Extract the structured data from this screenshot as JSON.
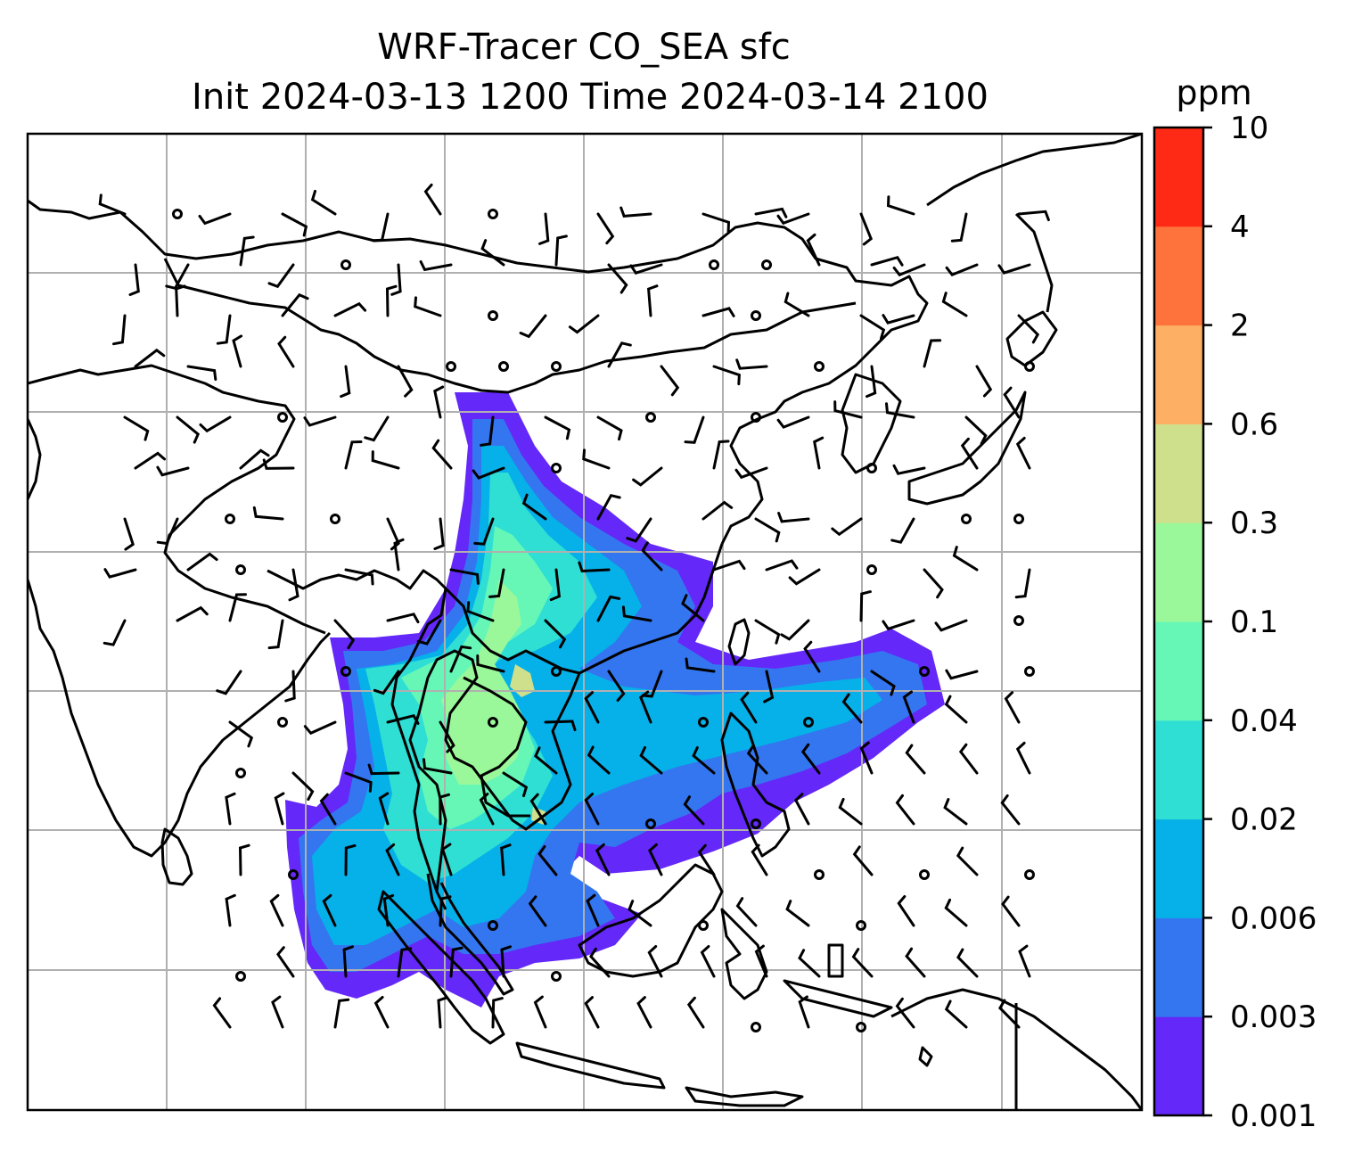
{
  "title": {
    "line1": "WRF-Tracer CO_SEA sfc",
    "line2": "Init 2024-03-13 1200 Time 2024-03-14 2100"
  },
  "colorbar": {
    "unit": "ppm",
    "levels": [
      "0.001",
      "0.003",
      "0.006",
      "0.02",
      "0.04",
      "0.1",
      "0.3",
      "0.6",
      "2",
      "4",
      "10"
    ],
    "colors": [
      "#6428f8",
      "#3476f0",
      "#05b1e8",
      "#2fdfd4",
      "#66f7b7",
      "#9bf89a",
      "#cfe08c",
      "#fdb064",
      "#fe733c",
      "#ff2a16"
    ]
  },
  "map": {
    "grid": true,
    "background": "#ffffff",
    "coastline_color": "#000000",
    "wind_barbs": true
  }
}
